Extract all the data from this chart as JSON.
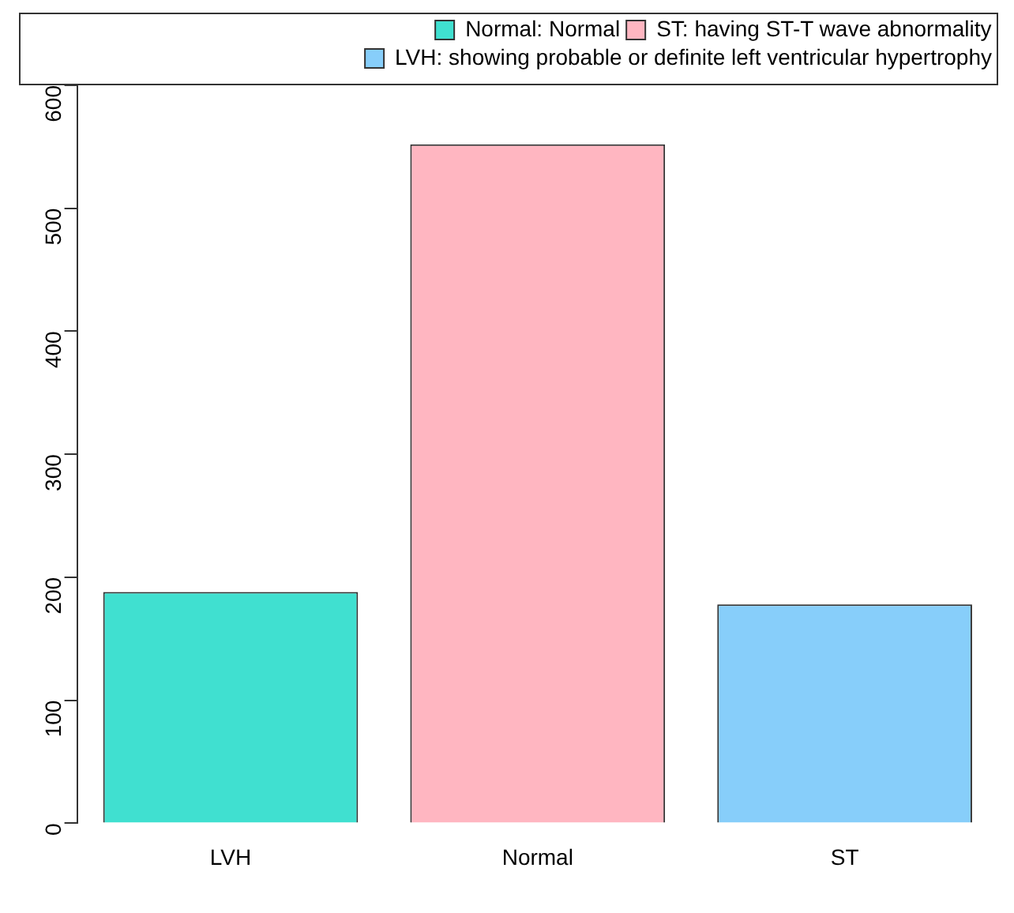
{
  "chart_data": {
    "type": "bar",
    "categories": [
      "LVH",
      "Normal",
      "ST"
    ],
    "series": [
      {
        "name": "Normal: Normal",
        "color": "#40e0d0",
        "values": [
          188,
          null,
          null
        ]
      },
      {
        "name": "ST: having ST-T wave abnormality",
        "color": "#ffb6c1",
        "values": [
          null,
          552,
          null
        ]
      },
      {
        "name": "LVH: showing probable or definite left ventricular hypertrophy",
        "color": "#87cefa",
        "values": [
          null,
          null,
          178
        ]
      }
    ],
    "ylim": [
      0,
      600
    ],
    "yticks": [
      0,
      100,
      200,
      300,
      400,
      500,
      600
    ],
    "grid": false,
    "legend": "top right"
  }
}
